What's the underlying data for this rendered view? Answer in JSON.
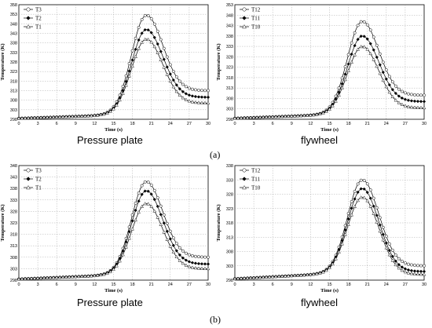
{
  "chart_data": [
    {
      "type": "line",
      "ylabel": "Temperature (K)",
      "xlabel": "Time (s)",
      "xlim": [
        0,
        30
      ],
      "ylim": [
        298,
        358
      ],
      "yticks": [
        298,
        303,
        308,
        313,
        318,
        323,
        328,
        333,
        338,
        343,
        348,
        353,
        358
      ],
      "xticks": [
        0,
        3,
        6,
        9,
        12,
        15,
        18,
        21,
        24,
        27,
        30
      ],
      "grid": true,
      "legend": "top-left",
      "series": [
        {
          "name": "T3",
          "marker": "circle",
          "peak": 352.5,
          "end": 313,
          "noise": 0.3
        },
        {
          "name": "T2",
          "marker": "diamond",
          "peak": 345,
          "end": 309.5,
          "noise": 0.15
        },
        {
          "name": "T1",
          "marker": "triangle",
          "peak": 340,
          "end": 306.5,
          "noise": 0.0
        }
      ]
    },
    {
      "type": "line",
      "ylabel": "Temperature (K)",
      "xlabel": "Time (s)",
      "xlim": [
        0,
        30
      ],
      "ylim": [
        298,
        353
      ],
      "yticks": [
        298,
        303,
        308,
        313,
        318,
        323,
        328,
        333,
        338,
        343,
        348,
        353
      ],
      "xticks": [
        0,
        3,
        6,
        9,
        12,
        15,
        18,
        21,
        24,
        27,
        30
      ],
      "grid": true,
      "legend": "top-left",
      "series": [
        {
          "name": "T12",
          "marker": "circle",
          "peak": 345,
          "end": 309.5,
          "noise": 0.3
        },
        {
          "name": "T11",
          "marker": "diamond",
          "peak": 338,
          "end": 306.5,
          "noise": 0.15
        },
        {
          "name": "T10",
          "marker": "triangle",
          "peak": 333,
          "end": 303.5,
          "noise": 0.0
        }
      ]
    },
    {
      "type": "line",
      "ylabel": "Temperature (K)",
      "xlabel": "Time (s)",
      "xlim": [
        0,
        30
      ],
      "ylim": [
        298,
        348
      ],
      "yticks": [
        298,
        303,
        308,
        313,
        318,
        323,
        328,
        333,
        338,
        343,
        348
      ],
      "xticks": [
        0,
        3,
        6,
        9,
        12,
        15,
        18,
        21,
        24,
        27,
        30
      ],
      "grid": true,
      "legend": "top-left",
      "series": [
        {
          "name": "T3",
          "marker": "circle",
          "peak": 341,
          "end": 308,
          "noise": 0.3
        },
        {
          "name": "T2",
          "marker": "diamond",
          "peak": 337,
          "end": 305,
          "noise": 0.15
        },
        {
          "name": "T1",
          "marker": "triangle",
          "peak": 331.5,
          "end": 303,
          "noise": 0.0
        }
      ]
    },
    {
      "type": "line",
      "ylabel": "Temperature (K)",
      "xlabel": "Time (s)",
      "xlim": [
        0,
        30
      ],
      "ylim": [
        298,
        338
      ],
      "yticks": [
        298,
        303,
        308,
        313,
        318,
        323,
        328,
        333,
        338
      ],
      "xticks": [
        0,
        3,
        6,
        9,
        12,
        15,
        18,
        21,
        24,
        27,
        30
      ],
      "grid": true,
      "legend": "top-left",
      "series": [
        {
          "name": "T12",
          "marker": "circle",
          "peak": 333,
          "end": 303,
          "noise": 0.3
        },
        {
          "name": "T11",
          "marker": "diamond",
          "peak": 330,
          "end": 301,
          "noise": 0.15
        },
        {
          "name": "T10",
          "marker": "triangle",
          "peak": 327,
          "end": 300,
          "noise": 0.0
        }
      ]
    }
  ],
  "captions": {
    "a_left": "Pressure plate",
    "a_right": "flywheel",
    "b_left": "Pressure plate",
    "b_right": "flywheel",
    "label_a": "(a)",
    "label_b": "(b)"
  }
}
